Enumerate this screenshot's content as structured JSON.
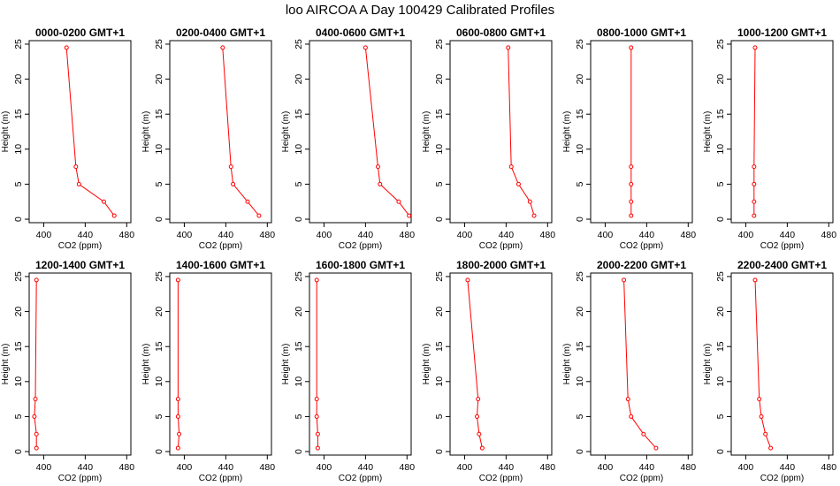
{
  "chart_data": {
    "type": "line",
    "title": "loo AIRCOA A  Day 100429  Calibrated Profiles",
    "xlabel": "CO2 (ppm)",
    "ylabel": "Height (m)",
    "xlim": [
      386,
      484
    ],
    "ylim": [
      -0.5,
      25.5
    ],
    "xticks": [
      "400",
      "440",
      "480"
    ],
    "yticks": [
      "0",
      "5",
      "10",
      "15",
      "20",
      "25"
    ],
    "line_color": "#ff0000",
    "heights": [
      24.5,
      7.5,
      5,
      2.5,
      0.5
    ],
    "panels": [
      {
        "title": "0000-0200 GMT+1",
        "co2": [
          422,
          431,
          434,
          458,
          468
        ]
      },
      {
        "title": "0200-0400 GMT+1",
        "co2": [
          437,
          445,
          447,
          461,
          472
        ]
      },
      {
        "title": "0400-0600 GMT+1",
        "co2": [
          440,
          452,
          454,
          472,
          482
        ]
      },
      {
        "title": "0600-0800 GMT+1",
        "co2": [
          442,
          445,
          452,
          463,
          467
        ]
      },
      {
        "title": "0800-1000 GMT+1",
        "co2": [
          425,
          425,
          425,
          425,
          425
        ]
      },
      {
        "title": "1000-1200 GMT+1",
        "co2": [
          409,
          408,
          408,
          408,
          408
        ]
      },
      {
        "title": "1200-1400 GMT+1",
        "co2": [
          393,
          392,
          391,
          393,
          393
        ]
      },
      {
        "title": "1400-1600 GMT+1",
        "co2": [
          394,
          394,
          394,
          395,
          394
        ]
      },
      {
        "title": "1600-1800 GMT+1",
        "co2": [
          393,
          393,
          393,
          394,
          394
        ]
      },
      {
        "title": "1800-2000 GMT+1",
        "co2": [
          403,
          413,
          412,
          414,
          417
        ]
      },
      {
        "title": "2000-2200 GMT+1",
        "co2": [
          418,
          422,
          425,
          437,
          449
        ]
      },
      {
        "title": "2200-2400 GMT+1",
        "co2": [
          409,
          413,
          415,
          419,
          424
        ]
      }
    ]
  }
}
